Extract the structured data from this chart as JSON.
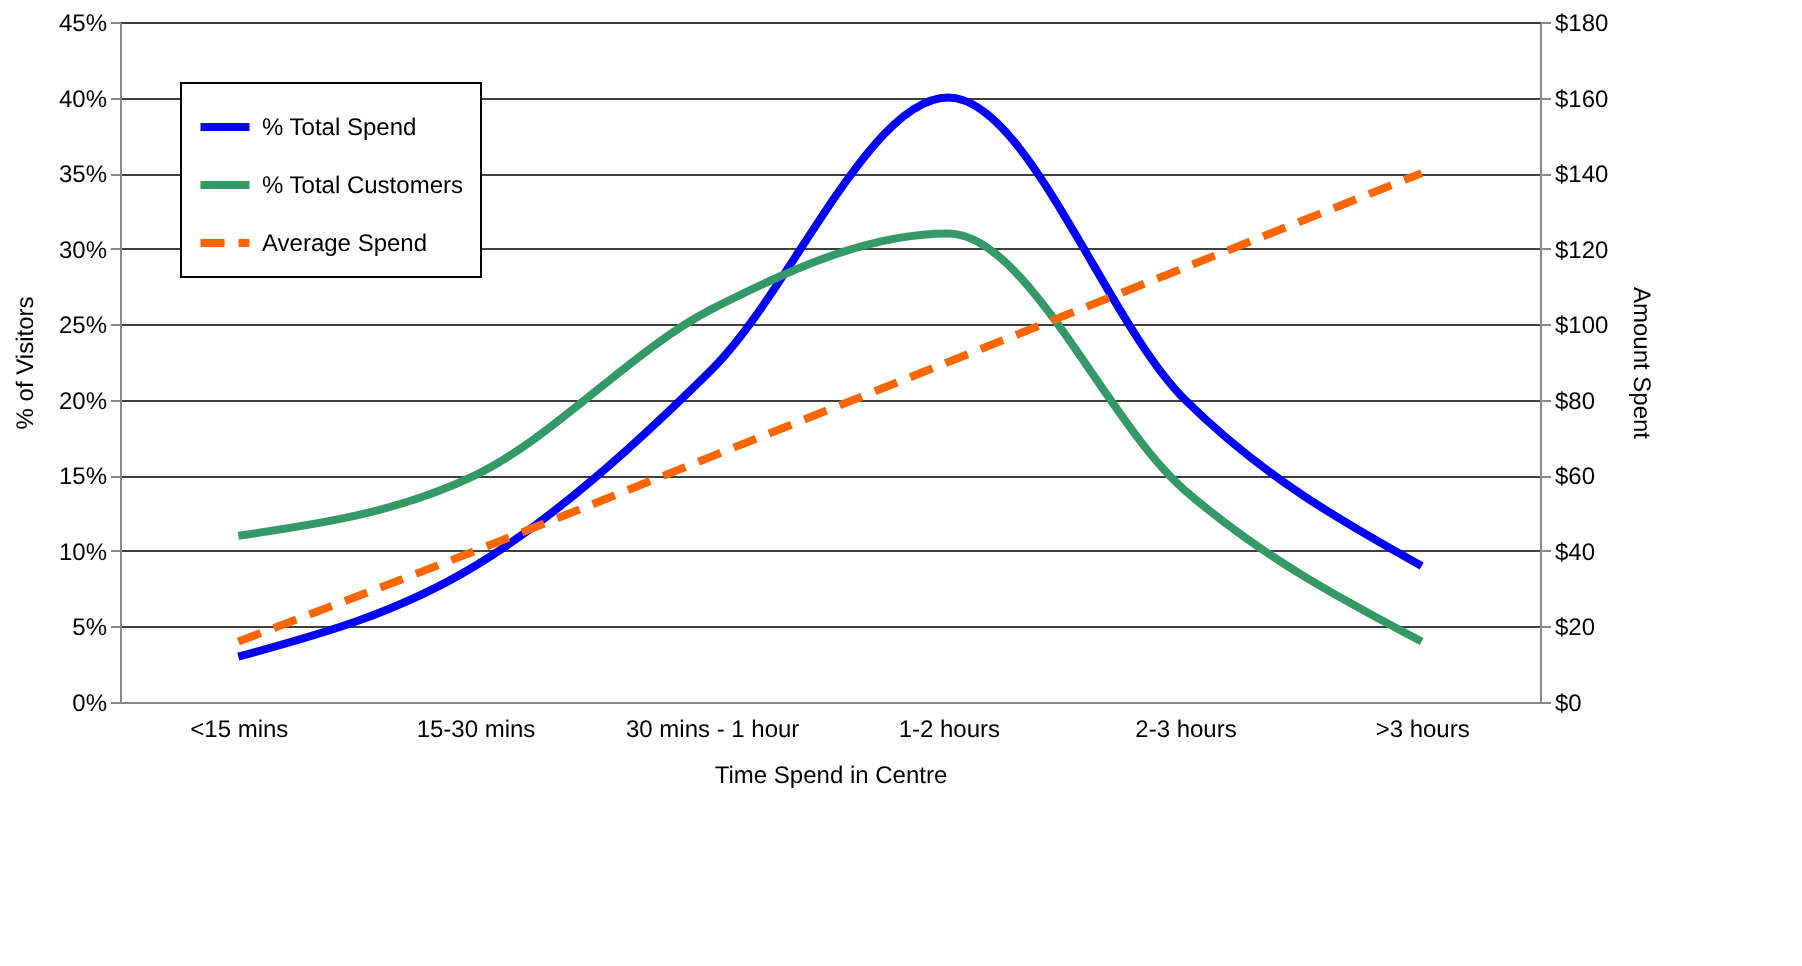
{
  "chart_data": {
    "type": "line",
    "xlabel": "Time Spend in Centre",
    "ylabel": "% of Visitors",
    "y2label": "Amount Spent",
    "categories": [
      "<15 mins",
      "15-30 mins",
      "30 mins - 1 hour",
      "1-2 hours",
      "2-3 hours",
      ">3 hours"
    ],
    "series": [
      {
        "name": "% Total Spend",
        "color": "#0000ff",
        "line_style": "solid",
        "values": [
          3,
          9,
          22,
          40,
          20,
          9
        ]
      },
      {
        "name": "% Total Customers",
        "color": "#339966",
        "line_style": "solid",
        "values": [
          11,
          15,
          26,
          31,
          14,
          4
        ]
      },
      {
        "name": "Average Spend",
        "color": "#ff6600",
        "line_style": "dashed",
        "axis": "y2",
        "values": [
          16,
          40,
          65,
          90,
          115,
          140
        ]
      }
    ],
    "ylim": [
      0,
      45
    ],
    "yticks": [
      {
        "value": 0,
        "label": "0%"
      },
      {
        "value": 5,
        "label": "5%"
      },
      {
        "value": 10,
        "label": "10%"
      },
      {
        "value": 15,
        "label": "15%"
      },
      {
        "value": 20,
        "label": "20%"
      },
      {
        "value": 25,
        "label": "25%"
      },
      {
        "value": 30,
        "label": "30%"
      },
      {
        "value": 35,
        "label": "35%"
      },
      {
        "value": 40,
        "label": "40%"
      },
      {
        "value": 45,
        "label": "45%"
      }
    ],
    "y2lim": [
      0,
      180
    ],
    "y2ticks": [
      {
        "value": 0,
        "label": "$0"
      },
      {
        "value": 20,
        "label": "$20"
      },
      {
        "value": 40,
        "label": "$40"
      },
      {
        "value": 60,
        "label": "$60"
      },
      {
        "value": 80,
        "label": "$80"
      },
      {
        "value": 100,
        "label": "$100"
      },
      {
        "value": 120,
        "label": "$120"
      },
      {
        "value": 140,
        "label": "$140"
      },
      {
        "value": 160,
        "label": "$160"
      },
      {
        "value": 180,
        "label": "$180"
      }
    ],
    "grid": "y",
    "legend": "top left",
    "marker": "none"
  }
}
